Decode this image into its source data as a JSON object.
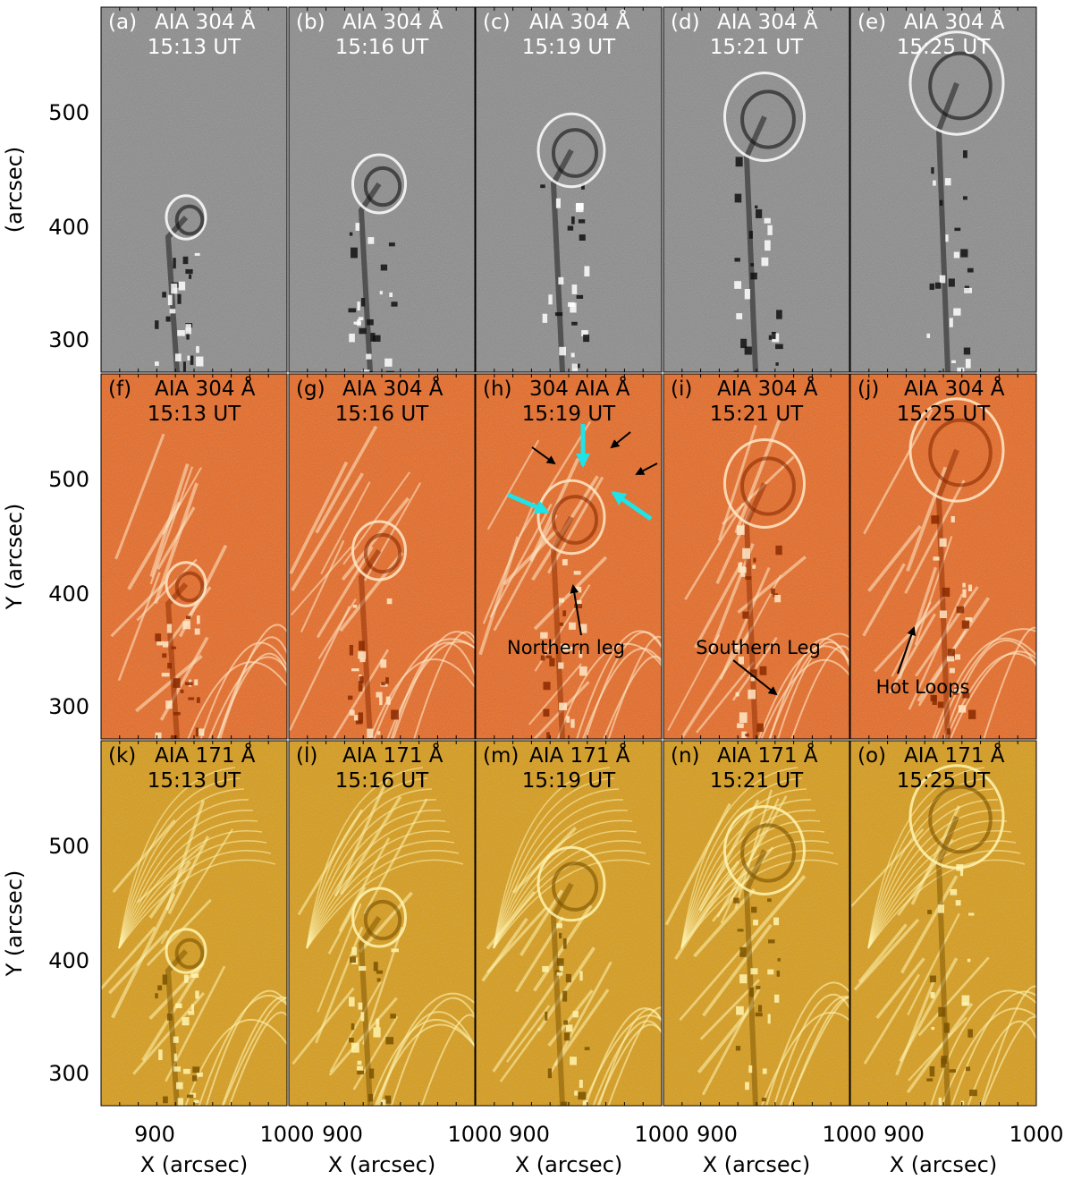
{
  "figure": {
    "rows": [
      {
        "name": "304-difference",
        "style": "gray",
        "ylabel": "(arcsec)",
        "panels": [
          {
            "label": "(a)",
            "channel": "AIA 304 Å",
            "time": "15:13 UT"
          },
          {
            "label": "(b)",
            "channel": "AIA 304 Å",
            "time": "15:16 UT"
          },
          {
            "label": "(c)",
            "channel": "AIA 304 Å",
            "time": "15:19 UT"
          },
          {
            "label": "(d)",
            "channel": "AIA 304 Å",
            "time": "15:21 UT"
          },
          {
            "label": "(e)",
            "channel": "AIA 304 Å",
            "time": "15:25 UT"
          }
        ]
      },
      {
        "name": "304-enhanced",
        "style": "orange",
        "ylabel": "Y (arcsec)",
        "panels": [
          {
            "label": "(f)",
            "channel": "AIA 304 Å",
            "time": "15:13 UT"
          },
          {
            "label": "(g)",
            "channel": "AIA 304 Å",
            "time": "15:16 UT"
          },
          {
            "label": "(h)",
            "channel": "304 AIA Å",
            "time": "15:19 UT"
          },
          {
            "label": "(i)",
            "channel": "AIA 304 Å",
            "time": "15:21 UT"
          },
          {
            "label": "(j)",
            "channel": "AIA 304 Å",
            "time": "15:25 UT"
          }
        ]
      },
      {
        "name": "171-enhanced",
        "style": "gold",
        "ylabel": "Y (arcsec)",
        "panels": [
          {
            "label": "(k)",
            "channel": "AIA 171 Å",
            "time": "15:13 UT"
          },
          {
            "label": "(l)",
            "channel": "AIA 171 Å",
            "time": "15:16 UT"
          },
          {
            "label": "(m)",
            "channel": "AIA 171 Å",
            "time": "15:19 UT"
          },
          {
            "label": "(n)",
            "channel": "AIA 171 Å",
            "time": "15:21 UT"
          },
          {
            "label": "(o)",
            "channel": "AIA 171 Å",
            "time": "15:25 UT"
          }
        ]
      }
    ],
    "y_ticks": [
      "500",
      "400",
      "300"
    ],
    "x_ticks": [
      [
        "900",
        "1000"
      ],
      [
        "900",
        "1000"
      ],
      [
        "900",
        "1000"
      ],
      [
        "900",
        "1000"
      ],
      [
        "900",
        "1000"
      ]
    ],
    "xlabel": "X (arcsec)",
    "annotations": {
      "northern_leg": "Northern leg",
      "southern_leg": "Southern Leg",
      "hot_loops": "Hot Loops"
    },
    "colors": {
      "gray_bg": "#8a8a8a",
      "orange_bg": "#e8661e",
      "gold_bg": "#d89a12",
      "cyan_arrow": "#1ee3e8",
      "arrow": "#000000"
    }
  }
}
